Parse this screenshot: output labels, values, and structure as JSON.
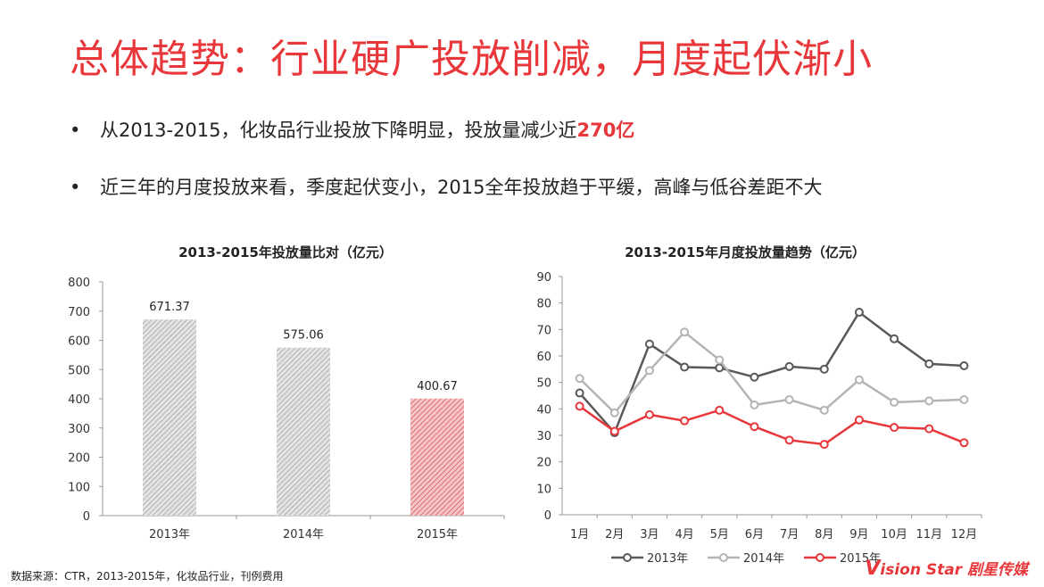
{
  "title": "总体趋势：行业硬广投放削减，月度起伏渐小",
  "bullets": [
    {
      "text": "从2013-2015，化妆品行业投放下降明显，投放量减少近",
      "highlight": "270亿"
    },
    {
      "text": "近三年的月度投放来看，季度起伏变小，2015全年投放趋于平缓，高峰与低谷差距不大",
      "highlight": ""
    }
  ],
  "bullet_symbol": "•",
  "chart_data": [
    {
      "type": "bar",
      "title": "2013-2015年投放量比对（亿元）",
      "categories": [
        "2013年",
        "2014年",
        "2015年"
      ],
      "values": [
        671.37,
        575.06,
        400.67
      ],
      "value_labels": [
        "671.37",
        "575.06",
        "400.67"
      ],
      "ylim": [
        0,
        800
      ],
      "yticks": [
        0,
        100,
        200,
        300,
        400,
        500,
        600,
        700,
        800
      ],
      "colors": [
        "#9a9a9a",
        "#9a9a9a",
        "#d9464b"
      ]
    },
    {
      "type": "line",
      "title": "2013-2015年月度投放量趋势（亿元）",
      "categories": [
        "1月",
        "2月",
        "3月",
        "4月",
        "5月",
        "6月",
        "7月",
        "8月",
        "9月",
        "10月",
        "11月",
        "12月"
      ],
      "ylim": [
        0,
        90
      ],
      "yticks": [
        0,
        10,
        20,
        30,
        40,
        50,
        60,
        70,
        80,
        90
      ],
      "series": [
        {
          "name": "2013年",
          "color": "#595959",
          "values": [
            46,
            31,
            64.5,
            55.8,
            55.5,
            52,
            56,
            55,
            76.5,
            66.5,
            57,
            56.3
          ]
        },
        {
          "name": "2014年",
          "color": "#b4b4b4",
          "values": [
            51.5,
            38.5,
            54.5,
            69,
            58.5,
            41.5,
            43.5,
            39.5,
            51,
            42.5,
            43,
            43.5
          ]
        },
        {
          "name": "2015年",
          "color": "#e8373b",
          "values": [
            41,
            31.5,
            37.8,
            35.5,
            39.5,
            33.3,
            28.2,
            26.6,
            35.8,
            33,
            32.5,
            27.2
          ]
        }
      ]
    }
  ],
  "source": "数据来源：CTR，2013-2015年，化妆品行业，刊例费用",
  "logo": {
    "mark": "V",
    "text": "ision Star 剧星传媒"
  }
}
